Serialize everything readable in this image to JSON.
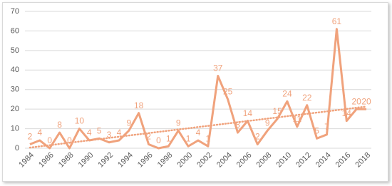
{
  "chart_data": {
    "type": "line",
    "categories": [
      "1984",
      null,
      "1986",
      null,
      "1988",
      null,
      "1990",
      null,
      "1992",
      null,
      "1994",
      null,
      "1996",
      null,
      "1998",
      null,
      "2000",
      null,
      "2002",
      null,
      "2004",
      null,
      "2006",
      null,
      "2008",
      null,
      "2010",
      null,
      "2012",
      null,
      "2014",
      null,
      "2016",
      null,
      "2018"
    ],
    "values": [
      2,
      4,
      0,
      8,
      0,
      10,
      4,
      5,
      3,
      4,
      9,
      18,
      2,
      0,
      1,
      9,
      1,
      4,
      1,
      37,
      25,
      8,
      14,
      2,
      9,
      15,
      24,
      11,
      22,
      5,
      7,
      61,
      14,
      20,
      20
    ],
    "color": "#f0a27c",
    "ylim": [
      0,
      70
    ],
    "yticks": [
      0,
      10,
      20,
      30,
      40,
      50,
      60,
      70
    ],
    "grid": true,
    "trendline": true
  }
}
